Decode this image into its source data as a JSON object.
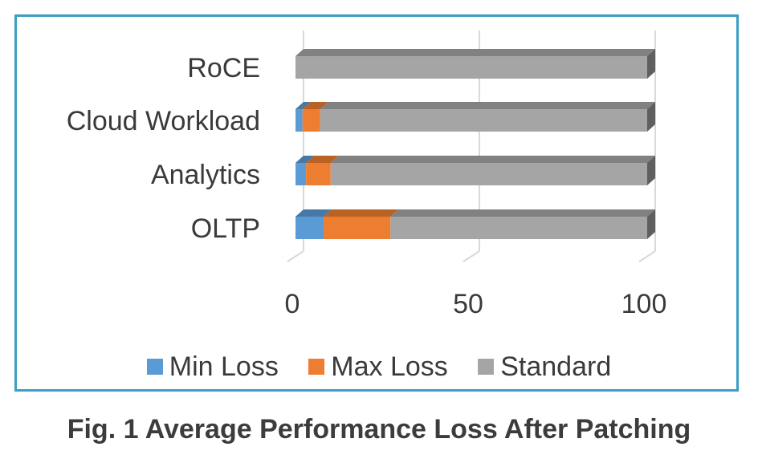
{
  "chart_data": {
    "type": "bar",
    "orientation": "horizontal",
    "stacked": true,
    "style": "3d",
    "categories": [
      "RoCE",
      "Cloud Workload",
      "Analytics",
      "OLTP"
    ],
    "series": [
      {
        "name": "Min Loss",
        "color": "#5b9bd5",
        "values": [
          0,
          2,
          3,
          8
        ]
      },
      {
        "name": "Max Loss",
        "color": "#ed7d31",
        "values": [
          0,
          5,
          7,
          19
        ]
      },
      {
        "name": "Standard",
        "color": "#a5a5a5",
        "values": [
          100,
          93,
          90,
          73
        ]
      }
    ],
    "x_ticks": [
      "0",
      "50",
      "100"
    ],
    "xlim": [
      0,
      100
    ],
    "grid": true,
    "legend_position": "bottom",
    "border_color": "#3a9fc4"
  },
  "caption": "Fig. 1  Average Performance Loss After Patching"
}
